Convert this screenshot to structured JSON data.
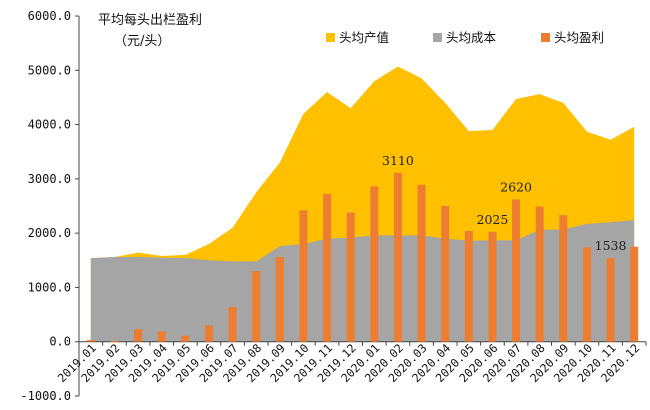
{
  "chart_data": {
    "type": "bar",
    "title_line1": "平均每头出栏盈利",
    "title_line2": "（元/头）",
    "categories": [
      "2019.01",
      "2019.02",
      "2019.03",
      "2019.04",
      "2019.05",
      "2019.06",
      "2019.07",
      "2019.08",
      "2019.09",
      "2019.10",
      "2019.11",
      "2019.12",
      "2020.01",
      "2020.02",
      "2020.03",
      "2020.04",
      "2020.05",
      "2020.06",
      "2020.07",
      "2020.08",
      "2020.09",
      "2020.10",
      "2020.11",
      "2020.12"
    ],
    "y_ticks": [
      "6000.0",
      "5000.0",
      "4000.0",
      "3000.0",
      "2000.0",
      "1000.0",
      "0.0",
      "-1000.0"
    ],
    "ylim": [
      -1000,
      6000
    ],
    "series": [
      {
        "name": "头均产值",
        "kind": "area",
        "color": "#FFC000",
        "values": [
          1540,
          1560,
          1640,
          1580,
          1600,
          1800,
          2100,
          2750,
          3300,
          4200,
          4600,
          4300,
          4800,
          5070,
          4850,
          4400,
          3880,
          3900,
          4470,
          4560,
          4400,
          3870,
          3720,
          3960
        ]
      },
      {
        "name": "头均成本",
        "kind": "area",
        "color": "#A5A5A5",
        "values": [
          1540,
          1560,
          1560,
          1550,
          1540,
          1500,
          1480,
          1480,
          1760,
          1800,
          1900,
          1920,
          1960,
          1960,
          1960,
          1900,
          1860,
          1870,
          1870,
          2060,
          2070,
          2170,
          2200,
          2240
        ]
      },
      {
        "name": "头均盈利",
        "kind": "bar",
        "color": "#ED7D31",
        "values": [
          30,
          10,
          230,
          190,
          110,
          300,
          640,
          1300,
          1560,
          2420,
          2720,
          2380,
          2860,
          3110,
          2890,
          2500,
          2040,
          2025,
          2620,
          2490,
          2330,
          1740,
          1538,
          1750
        ]
      }
    ],
    "labels": [
      {
        "index": 13,
        "text": "3110"
      },
      {
        "index": 17,
        "text": "2025"
      },
      {
        "index": 18,
        "text": "2620"
      },
      {
        "index": 22,
        "text": "1538"
      }
    ]
  }
}
